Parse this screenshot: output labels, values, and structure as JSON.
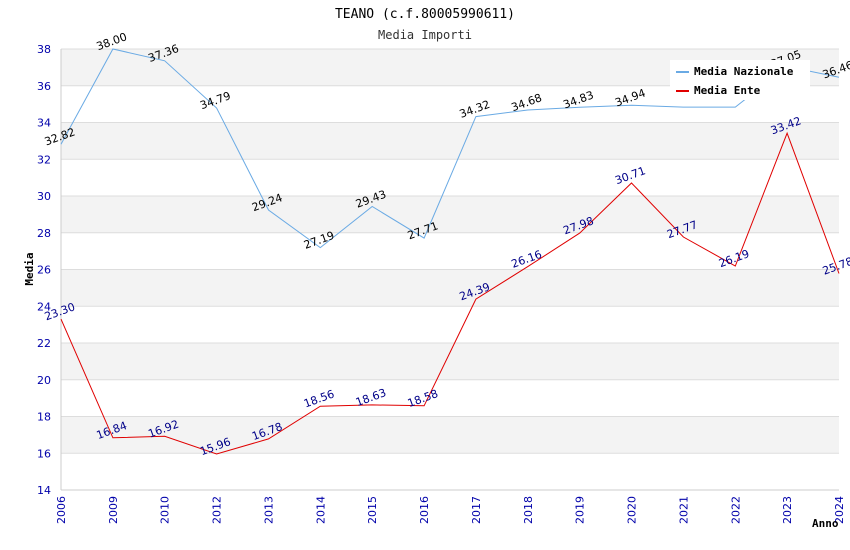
{
  "chart_data": {
    "type": "line",
    "title": "TEANO (c.f.80005990611)",
    "subtitle": "Media Importi",
    "xlabel": "Anno",
    "ylabel": "Media",
    "ylim": [
      14,
      38
    ],
    "yticks": [
      14,
      16,
      18,
      20,
      22,
      24,
      26,
      28,
      30,
      32,
      34,
      36,
      38
    ],
    "categories": [
      "2006",
      "2009",
      "2010",
      "2012",
      "2013",
      "2014",
      "2015",
      "2016",
      "2017",
      "2018",
      "2019",
      "2020",
      "2021",
      "2022",
      "2023",
      "2024"
    ],
    "series": [
      {
        "name": "Media Nazionale",
        "color": "#6aaae4",
        "values": [
          32.82,
          38.0,
          37.36,
          34.79,
          29.24,
          27.19,
          29.43,
          27.71,
          34.32,
          34.68,
          34.83,
          34.94,
          34.84,
          34.84,
          37.05,
          36.46
        ],
        "labels": [
          "32.82",
          "38.00",
          "37.36",
          "34.79",
          "29.24",
          "27.19",
          "29.43",
          "27.71",
          "34.32",
          "34.68",
          "34.83",
          "34.94",
          "",
          "",
          "37.05",
          "36.46"
        ]
      },
      {
        "name": "Media Ente",
        "color": "#e00000",
        "values": [
          23.3,
          16.84,
          16.92,
          15.96,
          16.78,
          18.56,
          18.63,
          18.58,
          24.39,
          26.16,
          27.98,
          30.71,
          27.77,
          26.19,
          33.42,
          25.78
        ],
        "labels": [
          "23.30",
          "16.84",
          "16.92",
          "15.96",
          "16.78",
          "18.56",
          "18.63",
          "18.58",
          "24.39",
          "26.16",
          "27.98",
          "30.71",
          "27.77",
          "26.19",
          "33.42",
          "25.78"
        ]
      }
    ],
    "legend_position": "top-right"
  }
}
